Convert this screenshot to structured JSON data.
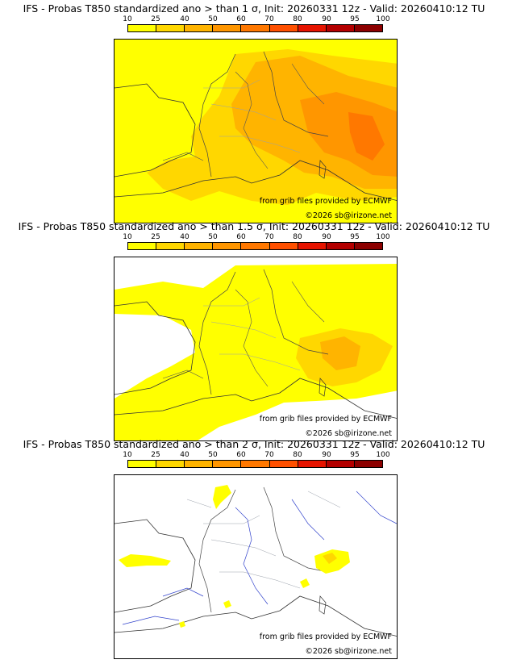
{
  "colorbar": {
    "ticks": [
      "10",
      "25",
      "40",
      "50",
      "60",
      "70",
      "80",
      "90",
      "95",
      "100"
    ],
    "colors": [
      "#ffff00",
      "#ffd700",
      "#ffb400",
      "#ff9600",
      "#ff7800",
      "#ff5000",
      "#e61400",
      "#b40000",
      "#8c0000"
    ]
  },
  "panels": [
    {
      "title": "IFS - Probas T850  standardized ano > than 1 σ, Init: 20260331 12z - Valid: 20260410:12 TU",
      "credit_line1": "from grib files provided by ECMWF",
      "credit_line2": "©2026 sb@irizone.net"
    },
    {
      "title": "IFS - Probas T850  standardized ano > than 1.5 σ, Init: 20260331 12z - Valid: 20260410:12 TU",
      "credit_line1": "from grib files provided by ECMWF",
      "credit_line2": "©2026 sb@irizone.net"
    },
    {
      "title": "IFS - Probas T850  standardized ano > than 2 σ, Init: 20260331 12z - Valid: 20260410:12 TU",
      "credit_line1": "from grib files provided by ECMWF",
      "credit_line2": "©2026 sb@irizone.net"
    }
  ]
}
